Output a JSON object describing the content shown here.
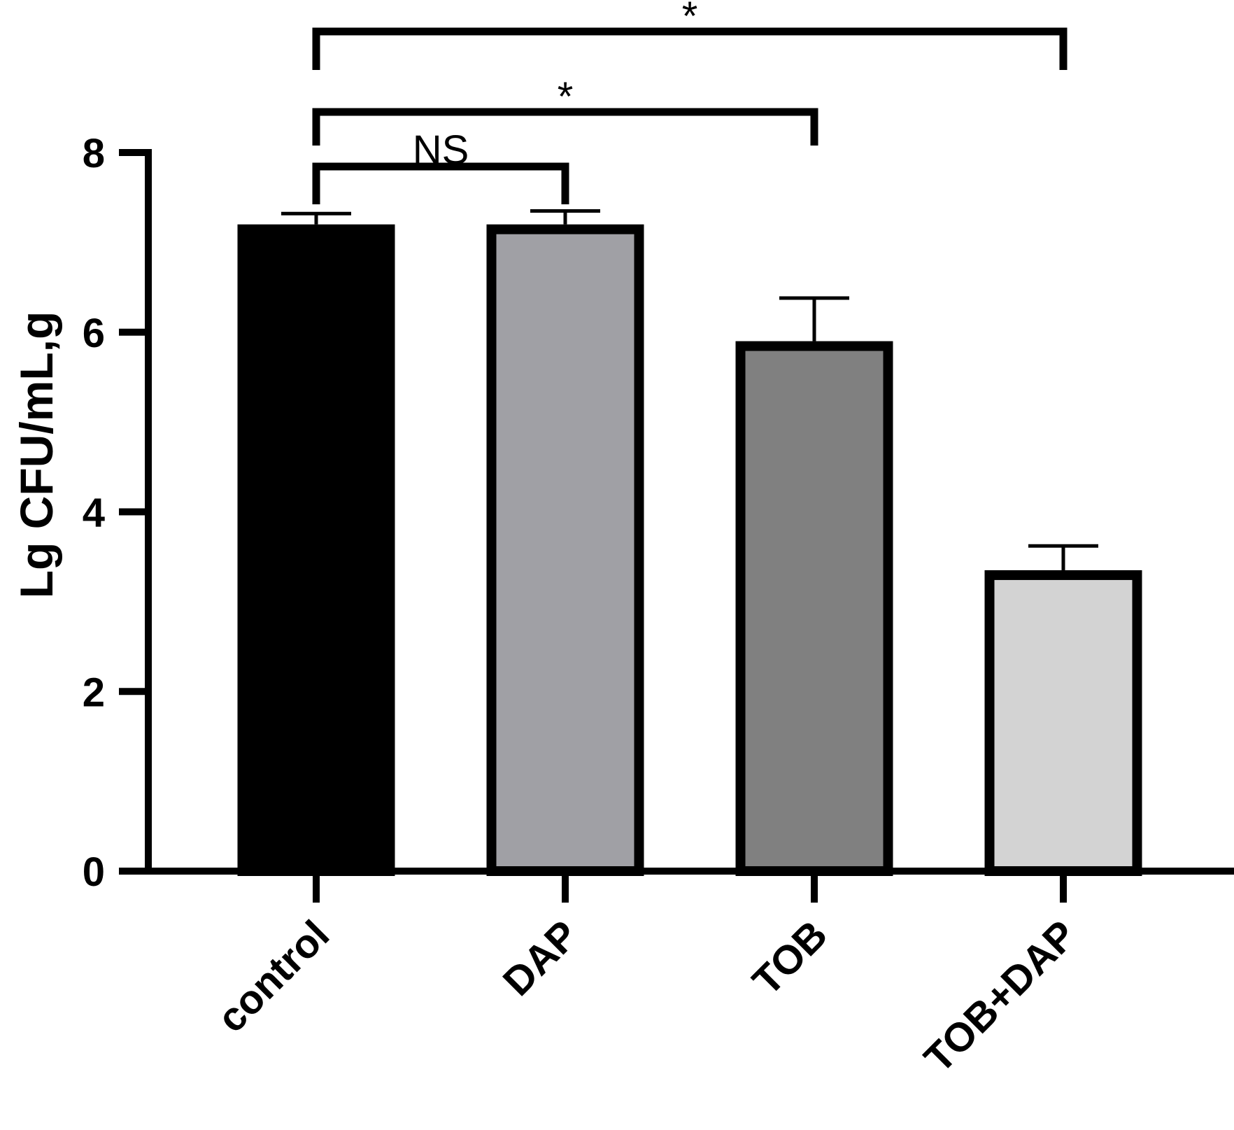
{
  "chart_data": {
    "type": "bar",
    "title": "",
    "xlabel": "",
    "ylabel": "Lg CFU/mL,g",
    "ylim": [
      0,
      8
    ],
    "yticks": [
      0,
      2,
      4,
      6,
      8
    ],
    "grid": false,
    "categories": [
      "control",
      "DAP",
      "TOB",
      "TOB+DAP"
    ],
    "values": [
      7.2,
      7.2,
      5.9,
      3.35
    ],
    "errors": [
      0.12,
      0.15,
      0.48,
      0.27
    ],
    "colors": [
      "#000000",
      "#a0a0a5",
      "#808080",
      "#d3d3d3"
    ],
    "significance": [
      {
        "from": 0,
        "to": 1,
        "label": "NS"
      },
      {
        "from": 0,
        "to": 2,
        "label": "*"
      },
      {
        "from": 0,
        "to": 3,
        "label": "*"
      }
    ]
  }
}
